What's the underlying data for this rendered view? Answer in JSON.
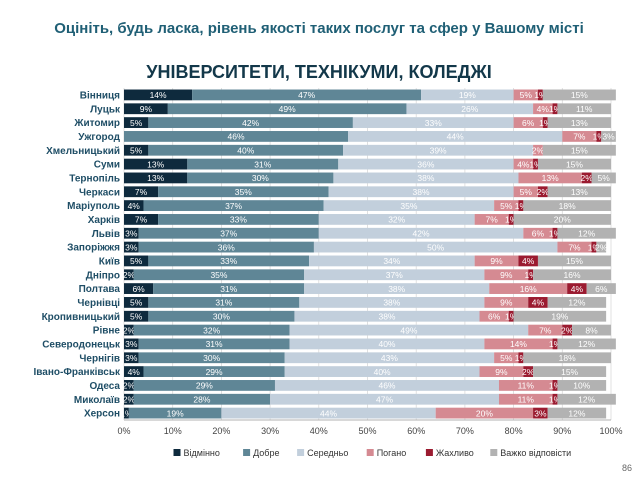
{
  "title": "Оцініть, будь ласка, рівень якості таких послуг та сфер у Вашому місті",
  "page_number": "86",
  "chart_data": {
    "type": "bar",
    "orientation": "horizontal",
    "stacked": true,
    "title": "УНІВЕРСИТЕТИ, ТЕХНІКУМИ, КОЛЕДЖІ",
    "xlim": [
      0,
      100
    ],
    "x_ticks": [
      "0%",
      "10%",
      "20%",
      "30%",
      "40%",
      "50%",
      "60%",
      "70%",
      "80%",
      "90%",
      "100%"
    ],
    "grid": true,
    "legend_position": "bottom",
    "categories": [
      "Вінниця",
      "Луцьк",
      "Житомир",
      "Ужгород",
      "Хмельницький",
      "Суми",
      "Тернопіль",
      "Черкаси",
      "Маріуполь",
      "Харків",
      "Львів",
      "Запоріжжя",
      "Київ",
      "Дніпро",
      "Полтава",
      "Чернівці",
      "Кропивницький",
      "Рівне",
      "Северодонецьк",
      "Чернігів",
      "Івано-Франківськ",
      "Одеса",
      "Миколаїв",
      "Херсон"
    ],
    "series": [
      {
        "name": "Відмінно",
        "color": "#0e2a3d",
        "values": [
          14,
          9,
          5,
          0,
          5,
          13,
          13,
          7,
          4,
          7,
          3,
          3,
          5,
          2,
          6,
          5,
          5,
          2,
          3,
          3,
          4,
          2,
          2,
          1
        ]
      },
      {
        "name": "Добре",
        "color": "#5f8696",
        "values": [
          47,
          49,
          42,
          46,
          40,
          31,
          30,
          35,
          37,
          33,
          37,
          36,
          33,
          35,
          31,
          31,
          30,
          32,
          31,
          30,
          29,
          29,
          28,
          19
        ]
      },
      {
        "name": "Середньо",
        "color": "#c2cfdc",
        "values": [
          19,
          26,
          33,
          44,
          39,
          36,
          38,
          38,
          35,
          32,
          42,
          50,
          34,
          37,
          38,
          38,
          38,
          49,
          40,
          43,
          40,
          46,
          47,
          44
        ]
      },
      {
        "name": "Погано",
        "color": "#d58a92",
        "values": [
          5,
          4,
          6,
          7,
          2,
          4,
          13,
          5,
          5,
          7,
          6,
          7,
          9,
          9,
          16,
          9,
          6,
          7,
          14,
          5,
          9,
          11,
          11,
          20
        ]
      },
      {
        "name": "Жахливо",
        "color": "#9b1b30",
        "values": [
          1,
          1,
          1,
          1,
          0,
          1,
          2,
          2,
          1,
          1,
          1,
          1,
          4,
          1,
          4,
          4,
          1,
          2,
          1,
          1,
          2,
          1,
          1,
          3
        ]
      },
      {
        "name": "Важко відповісти",
        "color": "#b2b2b2",
        "values": [
          15,
          11,
          13,
          3,
          15,
          15,
          5,
          13,
          18,
          20,
          12,
          2,
          15,
          16,
          6,
          12,
          19,
          8,
          12,
          18,
          15,
          10,
          12,
          12
        ]
      }
    ]
  }
}
